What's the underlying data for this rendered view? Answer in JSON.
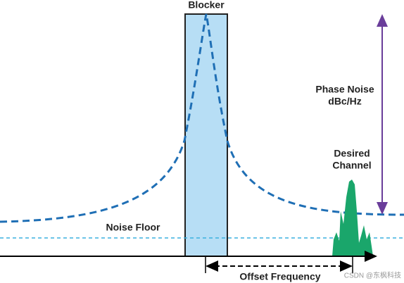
{
  "labels": {
    "blocker": "Blocker",
    "phase_noise": [
      "Phase Noise",
      "dBc/Hz"
    ],
    "desired_channel": [
      "Desired",
      "Channel"
    ],
    "noise_floor": "Noise Floor",
    "offset_frequency": "Offset Frequency",
    "watermark": "CSDN @东枫科技"
  }
}
